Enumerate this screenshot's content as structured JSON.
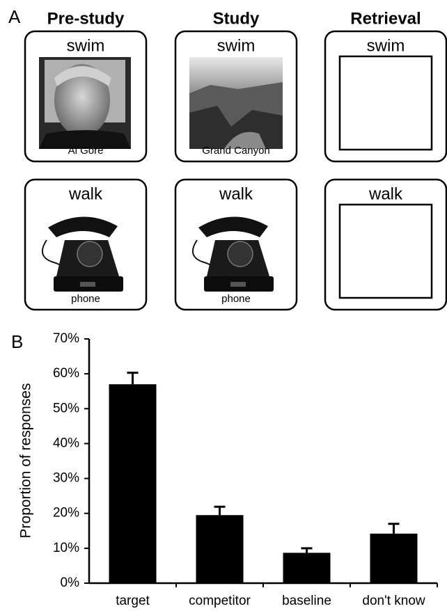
{
  "panel_a": {
    "label": "A",
    "columns": [
      "Pre-study",
      "Study",
      "Retrieval"
    ],
    "rows": [
      {
        "cards": [
          {
            "cue": "swim",
            "caption": "Al Gore"
          },
          {
            "cue": "swim",
            "caption": "Grand Canyon"
          },
          {
            "cue": "swim"
          }
        ]
      },
      {
        "cards": [
          {
            "cue": "walk",
            "caption": "phone"
          },
          {
            "cue": "walk",
            "caption": "phone"
          },
          {
            "cue": "walk"
          }
        ]
      }
    ]
  },
  "chart_data": {
    "type": "bar",
    "panel_label": "B",
    "y_label": "Proportion of responses",
    "categories": [
      "target",
      "competitor",
      "baseline",
      "don't know"
    ],
    "values": [
      57,
      19.5,
      8.7,
      14.2
    ],
    "errors": [
      3.3,
      2.4,
      1.3,
      2.8
    ],
    "color": "#000000",
    "ylim": [
      0,
      70
    ],
    "yticks": [
      {
        "value": 0,
        "label": "0%"
      },
      {
        "value": 10,
        "label": "10%"
      },
      {
        "value": 20,
        "label": "20%"
      },
      {
        "value": 30,
        "label": "30%"
      },
      {
        "value": 40,
        "label": "40%"
      },
      {
        "value": 50,
        "label": "50%"
      },
      {
        "value": 60,
        "label": "60%"
      },
      {
        "value": 70,
        "label": "70%"
      }
    ]
  }
}
